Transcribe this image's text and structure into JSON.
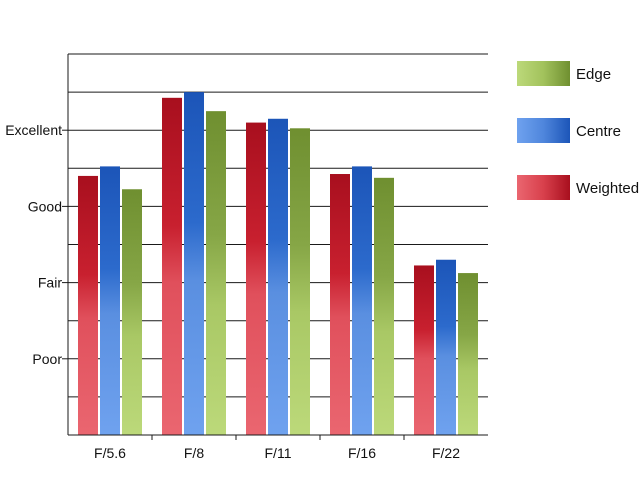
{
  "chart_data": {
    "type": "bar",
    "title": "",
    "xlabel": "",
    "ylabel": "",
    "categories": [
      "F/5.6",
      "F/8",
      "F/11",
      "F/16",
      "F/22"
    ],
    "series": [
      {
        "name": "Weighted",
        "color": "#c0182a",
        "values": [
          6.8,
          8.85,
          8.2,
          6.85,
          4.45
        ]
      },
      {
        "name": "Centre",
        "color": "#2060c0",
        "values": [
          7.05,
          9.0,
          8.3,
          7.05,
          4.6
        ]
      },
      {
        "name": "Edge",
        "color": "#7a9a3a",
        "values": [
          6.45,
          8.5,
          8.05,
          6.75,
          4.25
        ]
      }
    ],
    "ylim": [
      0,
      10
    ],
    "yticks": [
      {
        "value": 2,
        "label": "Poor"
      },
      {
        "value": 4,
        "label": "Fair"
      },
      {
        "value": 6,
        "label": "Good"
      },
      {
        "value": 8,
        "label": "Excellent"
      }
    ],
    "grid": true,
    "legend": {
      "position": "right",
      "items": [
        {
          "name": "Edge",
          "color": "#7a9a3a"
        },
        {
          "name": "Centre",
          "color": "#2060c0"
        },
        {
          "name": "Weighted",
          "color": "#c0182a"
        }
      ]
    }
  }
}
